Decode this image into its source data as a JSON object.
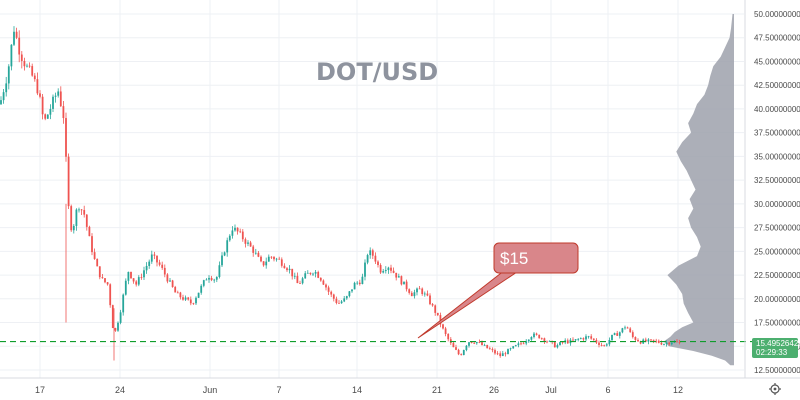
{
  "chart_data": {
    "type": "candlestick",
    "title": "DOT/USD",
    "x_tick_labels": [
      "17",
      "24",
      "Jun",
      "7",
      "14",
      "21",
      "26",
      "Jul",
      "6",
      "12"
    ],
    "y_tick_labels": [
      "12.50000000",
      "15.00000000",
      "17.50000000",
      "20.00000000",
      "22.50000000",
      "25.00000000",
      "27.50000000",
      "30.00000000",
      "32.50000000",
      "35.00000000",
      "37.50000000",
      "40.00000000",
      "42.50000000",
      "45.00000000",
      "47.50000000",
      "50.00000000"
    ],
    "ylim": [
      12.5,
      50
    ],
    "price_path": [
      [
        0,
        40.5
      ],
      [
        8,
        44.0
      ],
      [
        14,
        48.5
      ],
      [
        20,
        46.0
      ],
      [
        26,
        44.5
      ],
      [
        32,
        43.5
      ],
      [
        38,
        42.0
      ],
      [
        44,
        38.5
      ],
      [
        52,
        40.5
      ],
      [
        58,
        42.0
      ],
      [
        64,
        39.0
      ],
      [
        68,
        30.0
      ],
      [
        72,
        27.0
      ],
      [
        78,
        30.0
      ],
      [
        84,
        29.0
      ],
      [
        90,
        26.0
      ],
      [
        96,
        23.5
      ],
      [
        102,
        22.0
      ],
      [
        108,
        21.5
      ],
      [
        114,
        16.0
      ],
      [
        120,
        18.5
      ],
      [
        128,
        23.0
      ],
      [
        136,
        21.5
      ],
      [
        144,
        23.0
      ],
      [
        152,
        24.5
      ],
      [
        160,
        23.5
      ],
      [
        168,
        22.0
      ],
      [
        176,
        20.5
      ],
      [
        184,
        20.0
      ],
      [
        192,
        19.5
      ],
      [
        200,
        21.0
      ],
      [
        208,
        22.5
      ],
      [
        216,
        22.0
      ],
      [
        224,
        25.0
      ],
      [
        232,
        27.5
      ],
      [
        238,
        27.0
      ],
      [
        246,
        26.0
      ],
      [
        254,
        25.0
      ],
      [
        262,
        23.5
      ],
      [
        270,
        24.5
      ],
      [
        280,
        24.0
      ],
      [
        290,
        23.0
      ],
      [
        298,
        21.5
      ],
      [
        306,
        22.5
      ],
      [
        314,
        23.0
      ],
      [
        322,
        22.0
      ],
      [
        330,
        20.5
      ],
      [
        338,
        19.5
      ],
      [
        346,
        20.0
      ],
      [
        354,
        21.5
      ],
      [
        362,
        22.0
      ],
      [
        368,
        25.0
      ],
      [
        374,
        24.5
      ],
      [
        380,
        23.0
      ],
      [
        388,
        23.5
      ],
      [
        396,
        22.5
      ],
      [
        404,
        21.5
      ],
      [
        412,
        20.5
      ],
      [
        420,
        21.0
      ],
      [
        428,
        20.0
      ],
      [
        436,
        18.5
      ],
      [
        444,
        16.5
      ],
      [
        452,
        15.0
      ],
      [
        460,
        14.0
      ],
      [
        468,
        15.5
      ],
      [
        476,
        15.5
      ],
      [
        484,
        15.0
      ],
      [
        492,
        14.5
      ],
      [
        500,
        14.0
      ],
      [
        508,
        14.5
      ],
      [
        516,
        15.0
      ],
      [
        524,
        15.5
      ],
      [
        532,
        16.2
      ],
      [
        540,
        16.0
      ],
      [
        548,
        15.5
      ],
      [
        556,
        15.0
      ],
      [
        564,
        15.5
      ],
      [
        572,
        15.5
      ],
      [
        580,
        15.8
      ],
      [
        588,
        16.0
      ],
      [
        596,
        15.5
      ],
      [
        604,
        15.0
      ],
      [
        612,
        16.0
      ],
      [
        620,
        16.5
      ],
      [
        626,
        17.2
      ],
      [
        632,
        16.0
      ],
      [
        640,
        15.5
      ],
      [
        648,
        15.5
      ],
      [
        656,
        15.5
      ],
      [
        664,
        15.3
      ],
      [
        672,
        15.5
      ],
      [
        680,
        15.3
      ]
    ],
    "current_price": "15.49526422",
    "countdown": "02:29:33",
    "annotation": "$15",
    "colors": {
      "up": "#26a69a",
      "down": "#ef5350",
      "volume_profile": "#9ea1ab",
      "price_line": "#0f9d2c",
      "annotation_fill": "#d9868a",
      "annotation_stroke": "#c0392b",
      "price_box": "#4caf6f",
      "title": "#8e939e"
    }
  },
  "volume_profile": [
    [
      50.0,
      0.02
    ],
    [
      48.5,
      0.04
    ],
    [
      47.5,
      0.06
    ],
    [
      46.5,
      0.12
    ],
    [
      45.5,
      0.18
    ],
    [
      44.5,
      0.28
    ],
    [
      43.5,
      0.32
    ],
    [
      42.5,
      0.35
    ],
    [
      41.5,
      0.4
    ],
    [
      40.5,
      0.5
    ],
    [
      39.5,
      0.55
    ],
    [
      38.5,
      0.62
    ],
    [
      37.5,
      0.58
    ],
    [
      36.5,
      0.7
    ],
    [
      35.5,
      0.78
    ],
    [
      34.5,
      0.72
    ],
    [
      33.5,
      0.64
    ],
    [
      32.5,
      0.58
    ],
    [
      31.5,
      0.52
    ],
    [
      30.5,
      0.6
    ],
    [
      29.5,
      0.55
    ],
    [
      28.5,
      0.62
    ],
    [
      27.5,
      0.58
    ],
    [
      26.5,
      0.5
    ],
    [
      25.5,
      0.45
    ],
    [
      24.5,
      0.5
    ],
    [
      23.5,
      0.75
    ],
    [
      22.5,
      0.9
    ],
    [
      21.5,
      0.78
    ],
    [
      20.5,
      0.7
    ],
    [
      19.5,
      0.68
    ],
    [
      18.5,
      0.62
    ],
    [
      17.5,
      0.55
    ],
    [
      17.0,
      0.7
    ],
    [
      16.5,
      0.8
    ],
    [
      16.0,
      0.86
    ],
    [
      15.5,
      0.95
    ],
    [
      15.0,
      0.88
    ],
    [
      14.5,
      0.55
    ],
    [
      14.0,
      0.3
    ],
    [
      13.5,
      0.12
    ],
    [
      13.0,
      0.05
    ]
  ],
  "settings_icon": "gear-icon"
}
